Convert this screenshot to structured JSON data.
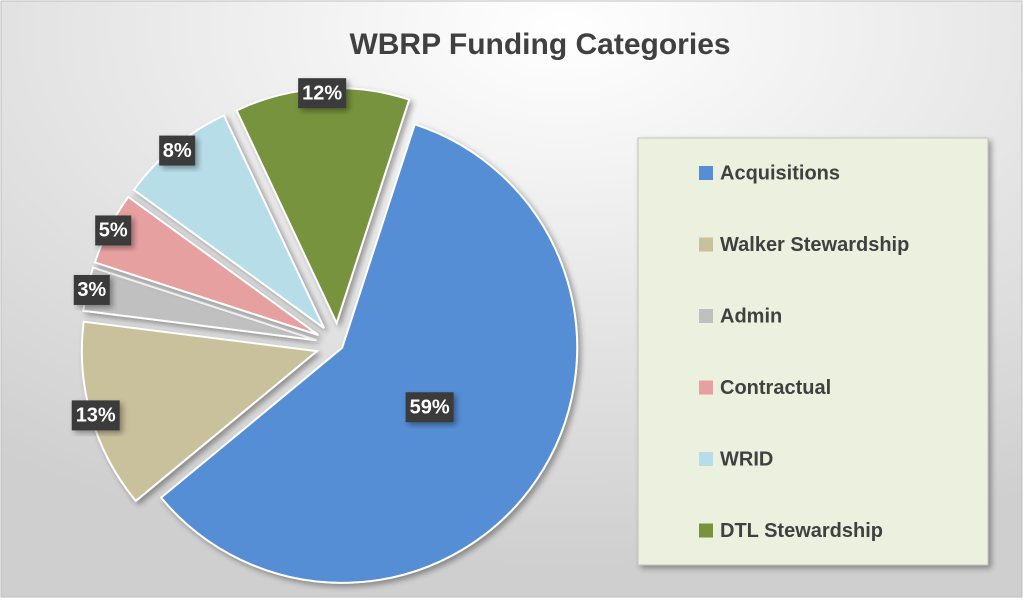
{
  "chart_data": {
    "type": "pie",
    "title": "WBRP Funding Categories",
    "categories": [
      "Acquisitions",
      "Walker Stewardship",
      "Admin",
      "Contractual",
      "WRID",
      "DTL Stewardship"
    ],
    "values": [
      59,
      13,
      3,
      5,
      8,
      12
    ],
    "value_labels": [
      "59%",
      "13%",
      "3%",
      "5%",
      "8%",
      "12%"
    ],
    "colors": [
      "#558ed5",
      "#c9c09c",
      "#c0c0c0",
      "#e6a0a0",
      "#b7dde8",
      "#77933c"
    ],
    "legend": "right"
  }
}
